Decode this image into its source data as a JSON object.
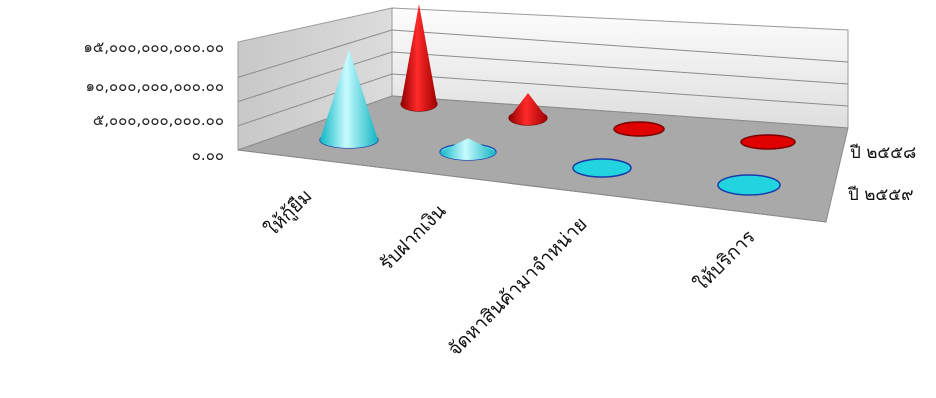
{
  "chart_data": {
    "type": "bar",
    "subtype": "3d-cone",
    "categories": [
      "ให้กู้ยืม",
      "รับฝากเงิน",
      "จัดหาสินค้ามาจำหน่าย",
      "ให้บริการ"
    ],
    "series": [
      {
        "name": "ปี ๒๕๕๘",
        "values": [
          16000000000,
          4000000000,
          0,
          0
        ]
      },
      {
        "name": "ปี ๒๕๕๙",
        "values": [
          14500000000,
          2200000000,
          0,
          0
        ]
      }
    ],
    "y_ticks": [
      "๐.๐๐",
      "๕,๐๐๐,๐๐๐,๐๐๐.๐๐",
      "๑๐,๐๐๐,๐๐๐,๐๐๐.๐๐",
      "๑๕,๐๐๐,๐๐๐,๐๐๐.๐๐"
    ],
    "y_tick_values": [
      0,
      5000000000,
      10000000000,
      15000000000
    ],
    "ylim": [
      0,
      20000000000
    ],
    "grid": true,
    "colors": {
      "ปี ๒๕๕๘": "#e00000",
      "ปี ๒๕๕๙": "#22d3e0",
      "floor": "#a9a9a9",
      "walls": "#e6e6e6"
    }
  }
}
